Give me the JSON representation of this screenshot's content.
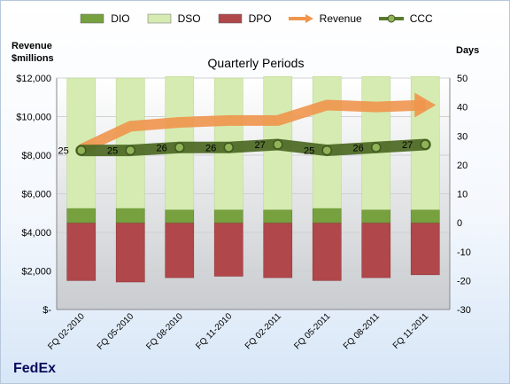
{
  "chart_data": {
    "type": "bar",
    "title": "Quarterly Periods",
    "y_left_label": [
      "Revenue",
      "$millions"
    ],
    "y_right_label": "Days",
    "brand": "FedEx",
    "categories": [
      "FQ 02-2010",
      "FQ 05-2010",
      "FQ 08-2010",
      "FQ 11-2010",
      "FQ 02-2011",
      "FQ 05-2011",
      "FQ 08-2011",
      "FQ 11-2011"
    ],
    "y_left": {
      "min": 0,
      "max": 12000,
      "step": 2000,
      "tick_labels": [
        "$-",
        "$2,000",
        "$4,000",
        "$6,000",
        "$8,000",
        "$10,000",
        "$12,000"
      ]
    },
    "y_right": {
      "min": -30,
      "max": 50,
      "step": 10
    },
    "bars_stacked_days": [
      {
        "name": "DIO",
        "color": "#77a03f",
        "values": [
          5,
          5,
          4.5,
          4.5,
          4.5,
          5,
          4.5,
          4.5
        ]
      },
      {
        "name": "DSO",
        "color": "#d5ebb1",
        "values": [
          45,
          45,
          46,
          45.5,
          46,
          45.5,
          46,
          46
        ]
      },
      {
        "name": "DPO",
        "color": "#b0474a",
        "values": [
          -20,
          -20.5,
          -19,
          -18.5,
          -19,
          -20,
          -19,
          -18
        ]
      }
    ],
    "lines": [
      {
        "name": "Revenue",
        "axis": "left",
        "color": "#f0954d",
        "values": [
          8300,
          9500,
          9700,
          9800,
          9800,
          10600,
          10500,
          10600
        ],
        "arrow": true
      },
      {
        "name": "CCC",
        "axis": "right",
        "color": "#5a7a2d",
        "values": [
          25,
          25,
          26,
          26,
          27,
          25,
          26,
          27
        ],
        "data_labels": true
      }
    ],
    "legend": [
      "DIO",
      "DSO",
      "DPO",
      "Revenue",
      "CCC"
    ]
  }
}
